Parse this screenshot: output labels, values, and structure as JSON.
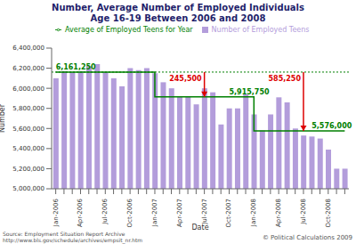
{
  "chart_data": {
    "type": "bar",
    "title": [
      "Number, Average Number of Employed Individuals",
      "Age 16-19 Between 2006 and 2008"
    ],
    "x_label": "Date",
    "y_label": "Number",
    "categories": [
      "Jan-2006",
      null,
      null,
      "Apr-2006",
      null,
      null,
      "Jul-2006",
      null,
      null,
      "Oct-2006",
      null,
      null,
      "Jan-2007",
      null,
      null,
      "Apr-2007",
      null,
      null,
      "Jul-2007",
      null,
      null,
      "Oct-2007",
      null,
      null,
      "Jan-2008",
      null,
      null,
      "Apr-2008",
      null,
      null,
      "Jul-2008",
      null,
      null,
      "Oct-2008",
      null,
      null
    ],
    "series": [
      {
        "name": "Number of Employed Teens",
        "type": "bar",
        "color": "#b39ddb",
        "values": [
          6100000,
          6170000,
          6160000,
          6170000,
          6220000,
          6240000,
          6160000,
          6100000,
          6020000,
          6200000,
          6180000,
          6200000,
          6150000,
          6060000,
          6000000,
          5920000,
          5920000,
          5840000,
          6000000,
          5960000,
          5640000,
          5800000,
          5800000,
          5940000,
          5740000,
          5580000,
          5740000,
          5910000,
          5860000,
          5600000,
          5530000,
          5520000,
          5500000,
          5390000,
          5200000,
          5200000
        ]
      },
      {
        "name": "Average of Employed Teens for Year",
        "type": "line",
        "line_style": "step",
        "color": "#008000",
        "values": [
          6161250,
          6161250,
          6161250,
          6161250,
          6161250,
          6161250,
          6161250,
          6161250,
          6161250,
          6161250,
          6161250,
          6161250,
          5915750,
          5915750,
          5915750,
          5915750,
          5915750,
          5915750,
          5915750,
          5915750,
          5915750,
          5915750,
          5915750,
          5915750,
          5576000,
          5576000,
          5576000,
          5576000,
          5576000,
          5576000,
          5576000,
          5576000,
          5576000,
          5576000,
          5576000,
          5576000
        ]
      }
    ],
    "ylim": [
      5000000,
      6400000
    ],
    "yticks": [
      {
        "value": 5000000,
        "label": "5,000,000"
      },
      {
        "value": 5200000,
        "label": "5,200,000"
      },
      {
        "value": 5400000,
        "label": "5,400,000"
      },
      {
        "value": 5600000,
        "label": "5,600,000"
      },
      {
        "value": 5800000,
        "label": "5,800,000"
      },
      {
        "value": 6000000,
        "label": "6,000,000"
      },
      {
        "value": 6200000,
        "label": "6,200,000"
      },
      {
        "value": 6400000,
        "label": "6,400,000"
      }
    ],
    "grid": false,
    "legend": "top-left",
    "reference_lines": [
      {
        "value": 6161250,
        "line_style": "dotted",
        "color": "#008000"
      }
    ],
    "annotations": [
      {
        "text": "6,161,250",
        "value": 6161250,
        "at": 0,
        "color": "#008000"
      },
      {
        "text": "5,915,750",
        "value": 5915750,
        "at": 21,
        "color": "#008000"
      },
      {
        "text": "5,576,000",
        "value": 5576000,
        "at": 31,
        "color": "#008000"
      }
    ],
    "differences": [
      {
        "text": "245,500",
        "value": 245500,
        "from": 6161250,
        "at": 18,
        "color": "#dd0000"
      },
      {
        "text": "585,250",
        "value": 585250,
        "from": 6161250,
        "at": 30,
        "color": "#dd0000"
      }
    ],
    "source": [
      "Source: Employment Situation Report Archive",
      "http://www.bls.gov/schedule/archives/empsit_nr.htm"
    ],
    "credit": "© Political Calculations 2009"
  }
}
